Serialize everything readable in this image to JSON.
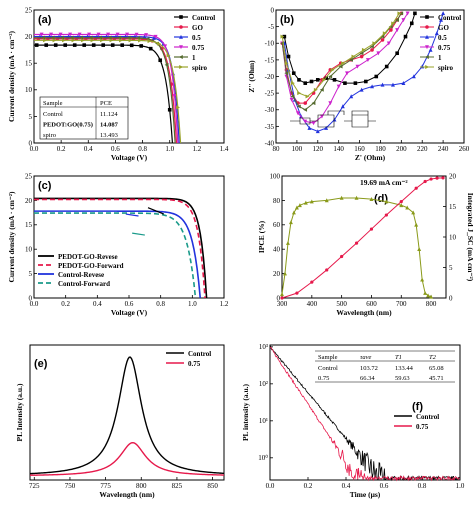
{
  "chart_data": [
    {
      "panel": "(a)",
      "type": "line",
      "xlabel": "Voltage (V)",
      "ylabel": "Current density (mA · cm⁻²)",
      "xlim": [
        0,
        1.4
      ],
      "ylim": [
        0,
        25
      ],
      "xticks": [
        "0.0",
        "0.2",
        "0.4",
        "0.6",
        "0.8",
        "1.0",
        "1.2",
        "1.4"
      ],
      "yticks": [
        "0",
        "5",
        "10",
        "15",
        "20",
        "25"
      ],
      "legend": "top-right",
      "series": [
        {
          "name": "Control",
          "color": "#000000",
          "marker": "square",
          "jsc": 18.4,
          "voc": 1.02,
          "ff": 0.64
        },
        {
          "name": "GO",
          "color": "#e6194b",
          "marker": "circle",
          "jsc": 19.6,
          "voc": 1.05,
          "ff": 0.66
        },
        {
          "name": "0.5",
          "color": "#2233dd",
          "marker": "triangle",
          "jsc": 20.0,
          "voc": 1.07,
          "ff": 0.68
        },
        {
          "name": "0.75",
          "color": "#cc22cc",
          "marker": "triangle-down",
          "jsc": 20.4,
          "voc": 1.06,
          "ff": 0.69
        },
        {
          "name": "1",
          "color": "#556b2f",
          "marker": "triangle-left",
          "jsc": 19.8,
          "voc": 1.04,
          "ff": 0.66
        },
        {
          "name": "spiro",
          "color": "#9aa32a",
          "marker": "triangle-right",
          "jsc": 19.3,
          "voc": 1.08,
          "ff": 0.65
        }
      ],
      "table": {
        "headers": [
          "Sample",
          "PCE"
        ],
        "rows": [
          {
            "sample": "Control",
            "pce": "11.124",
            "color": "#000000"
          },
          {
            "sample": "PEDOT:GO(0.75)",
            "pce": "14.087",
            "color": "#e6194b"
          },
          {
            "sample": "spiro",
            "pce": "13.493",
            "color": "#000000"
          }
        ]
      }
    },
    {
      "panel": "(b)",
      "type": "scatter",
      "xlabel": "Z' (Ohm)",
      "ylabel": "Z'' (Ohm)",
      "xlim": [
        80,
        260
      ],
      "ylim": [
        -40,
        0
      ],
      "xticks": [
        "80",
        "100",
        "120",
        "140",
        "160",
        "180",
        "200",
        "220",
        "240",
        "260"
      ],
      "yticks": [
        "-40",
        "-35",
        "-30",
        "-25",
        "-20",
        "-15",
        "-10",
        "-5",
        "0"
      ],
      "legend": "top-right",
      "series": [
        {
          "name": "Control",
          "color": "#000000",
          "marker": "square",
          "x": [
            88,
            92,
            97,
            102,
            108,
            114,
            120,
            128,
            136,
            146,
            156,
            166,
            176,
            186,
            196,
            204,
            210,
            213
          ],
          "y": [
            -8,
            -14,
            -19,
            -21,
            -22,
            -21.5,
            -21,
            -20.5,
            -21,
            -22,
            -22,
            -21.5,
            -20,
            -17,
            -13,
            -8,
            -4,
            -1
          ]
        },
        {
          "name": "GO",
          "color": "#e6194b",
          "marker": "circle",
          "x": [
            86,
            90,
            95,
            101,
            108,
            116,
            124,
            132,
            142,
            152,
            162,
            172,
            182,
            190,
            196,
            200
          ],
          "y": [
            -10,
            -18,
            -25,
            -28,
            -28,
            -25,
            -21,
            -18,
            -16,
            -15,
            -14,
            -12,
            -9,
            -6,
            -3,
            -1
          ]
        },
        {
          "name": "0.5",
          "color": "#2233dd",
          "marker": "triangle",
          "x": [
            88,
            92,
            98,
            104,
            112,
            120,
            128,
            136,
            144,
            152,
            162,
            172,
            182,
            192,
            202,
            212,
            220,
            228,
            234,
            238,
            240
          ],
          "y": [
            -10,
            -18,
            -27,
            -32,
            -35.5,
            -36.5,
            -35.5,
            -33,
            -29,
            -26,
            -24,
            -23,
            -22.5,
            -22.5,
            -22,
            -20,
            -17,
            -12,
            -7,
            -3,
            -1
          ]
        },
        {
          "name": "0.75",
          "color": "#cc22cc",
          "marker": "triangle-down",
          "x": [
            86,
            90,
            95,
            101,
            108,
            116,
            124,
            132,
            140,
            148,
            158,
            168,
            178,
            188,
            196,
            202,
            206
          ],
          "y": [
            -10,
            -20,
            -27,
            -31,
            -33.5,
            -34,
            -32,
            -28,
            -23,
            -19,
            -17,
            -15,
            -13,
            -10,
            -6,
            -3,
            -1
          ]
        },
        {
          "name": "1",
          "color": "#556b2f",
          "marker": "triangle-left",
          "x": [
            86,
            90,
            96,
            102,
            108,
            116,
            124,
            132,
            142,
            152,
            162,
            172,
            182,
            190,
            196,
            200
          ],
          "y": [
            -10,
            -19,
            -26,
            -29,
            -30,
            -28,
            -24,
            -20,
            -17,
            -15,
            -13,
            -11,
            -8,
            -5,
            -3,
            -1
          ]
        },
        {
          "name": "spiro",
          "color": "#9aa32a",
          "marker": "triangle-right",
          "x": [
            86,
            90,
            96,
            102,
            110,
            118,
            126,
            134,
            144,
            154,
            164,
            174,
            184,
            192,
            198
          ],
          "y": [
            -8,
            -16,
            -22,
            -25,
            -26,
            -24,
            -21,
            -18,
            -16,
            -14,
            -12,
            -10,
            -7,
            -4,
            -1
          ]
        }
      ]
    },
    {
      "panel": "(c)",
      "type": "line",
      "xlabel": "Voltage (V)",
      "ylabel": "Current density (mA · cm⁻²)",
      "xlim": [
        0,
        1.2
      ],
      "ylim": [
        0,
        25
      ],
      "xticks": [
        "0.0",
        "0.2",
        "0.4",
        "0.6",
        "0.8",
        "1.0",
        "1.2"
      ],
      "yticks": [
        "0",
        "5",
        "10",
        "15",
        "20",
        "25"
      ],
      "legend": "bottom-left",
      "series": [
        {
          "name": "PEDOT-GO-Revese",
          "color": "#000000",
          "dash": "",
          "jsc": 20.4,
          "voc": 1.09,
          "ff": 0.72
        },
        {
          "name": "PEDOT-GO-Forward",
          "color": "#e6194b",
          "dash": "5,3",
          "jsc": 20.2,
          "voc": 1.08,
          "ff": 0.7
        },
        {
          "name": "Control-Revese",
          "color": "#2233dd",
          "dash": "",
          "jsc": 17.8,
          "voc": 1.05,
          "ff": 0.64
        },
        {
          "name": "Control-Forward",
          "color": "#1a9a8a",
          "dash": "5,3",
          "jsc": 17.4,
          "voc": 1.02,
          "ff": 0.6
        }
      ]
    },
    {
      "panel": "(d)",
      "type": "line",
      "xlabel": "Wavelength (nm)",
      "ylabel": "IPCE (%)",
      "y2label": "Integrated J_SC (mA cm⁻²)",
      "annotation": "19.69 mA cm⁻²",
      "xlim": [
        300,
        850
      ],
      "ylim": [
        0,
        100
      ],
      "y2lim": [
        0,
        20
      ],
      "xticks": [
        "300",
        "400",
        "500",
        "600",
        "700",
        "800"
      ],
      "yticks": [
        "0",
        "20",
        "40",
        "60",
        "80",
        "100"
      ],
      "y2ticks": [
        "0",
        "5",
        "10",
        "15",
        "20"
      ],
      "series": [
        {
          "name": "IPCE",
          "color": "#8a9a1a",
          "marker": "triangle",
          "x": [
            300,
            310,
            320,
            330,
            340,
            350,
            360,
            380,
            400,
            450,
            500,
            550,
            600,
            650,
            700,
            720,
            740,
            750,
            760,
            770,
            780,
            790,
            800
          ],
          "y": [
            3,
            20,
            45,
            62,
            70,
            74,
            76,
            78,
            79,
            80,
            82,
            82,
            81,
            79,
            76,
            74,
            70,
            60,
            40,
            15,
            4,
            2,
            1
          ]
        },
        {
          "name": "Integrated Jsc",
          "color": "#e6194b",
          "marker": "circle",
          "x": [
            300,
            350,
            400,
            450,
            500,
            550,
            600,
            650,
            700,
            750,
            780,
            800,
            820,
            840
          ],
          "y": [
            0,
            0.8,
            2.6,
            4.6,
            6.8,
            9.0,
            11.3,
            13.6,
            15.8,
            18.0,
            19.1,
            19.5,
            19.65,
            19.69
          ]
        }
      ]
    },
    {
      "panel": "(e)",
      "type": "line",
      "xlabel": "Wavelength (nm)",
      "ylabel": "PL Intensity (a.u.)",
      "xlim": [
        722,
        858
      ],
      "xticks": [
        "725",
        "750",
        "775",
        "800",
        "825",
        "850"
      ],
      "legend": "top-right",
      "series": [
        {
          "name": "Control",
          "color": "#000000",
          "center": 792,
          "peak": 1.0,
          "width": 10
        },
        {
          "name": "0.75",
          "color": "#e6194b",
          "center": 794,
          "peak": 0.28,
          "width": 11
        }
      ]
    },
    {
      "panel": "(f)",
      "type": "line",
      "xlabel": "Time (μs)",
      "ylabel": "PL intensity (a.u.)",
      "xlim": [
        0,
        1.0
      ],
      "yscale": "log",
      "xticks": [
        "0.0",
        "0.2",
        "0.4",
        "0.6",
        "0.8",
        "1.0"
      ],
      "yticks": [
        "10⁰",
        "10¹",
        "10²",
        "10³"
      ],
      "legend": "right",
      "series": [
        {
          "name": "Control",
          "color": "#000000",
          "decay": 0.15
        },
        {
          "name": "0.75",
          "color": "#e6194b",
          "decay": 0.12
        }
      ],
      "table": {
        "headers": [
          "Sample",
          "τave",
          "T1",
          "T2"
        ],
        "rows": [
          [
            "Control",
            "103.72",
            "133.44",
            "65.08"
          ],
          [
            "0.75",
            "66.34",
            "59.63",
            "45.71"
          ]
        ]
      }
    }
  ]
}
